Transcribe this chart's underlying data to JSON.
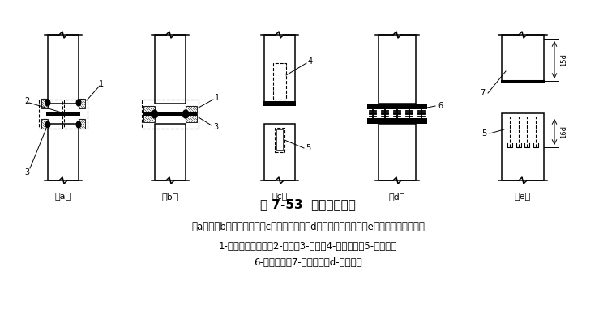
{
  "title": "图 7-53  桩的接头型式",
  "caption_line1": "（a）、（b）焊接接合；（c）管式接合；（d）管桩螺栓接合；（e）硫磺砂浆锚筋接合",
  "caption_line2": "1-角钢与主筋焊接；2-钢板；3-焊缝；4-预埋钢管；5-浆锚孔；",
  "caption_line3": "6-预埋法兰；7-预埋锚筋；d-锚栓直径",
  "bg_color": "#ffffff",
  "line_color": "#000000",
  "fig_width": 7.6,
  "fig_height": 3.98,
  "dpi": 100
}
